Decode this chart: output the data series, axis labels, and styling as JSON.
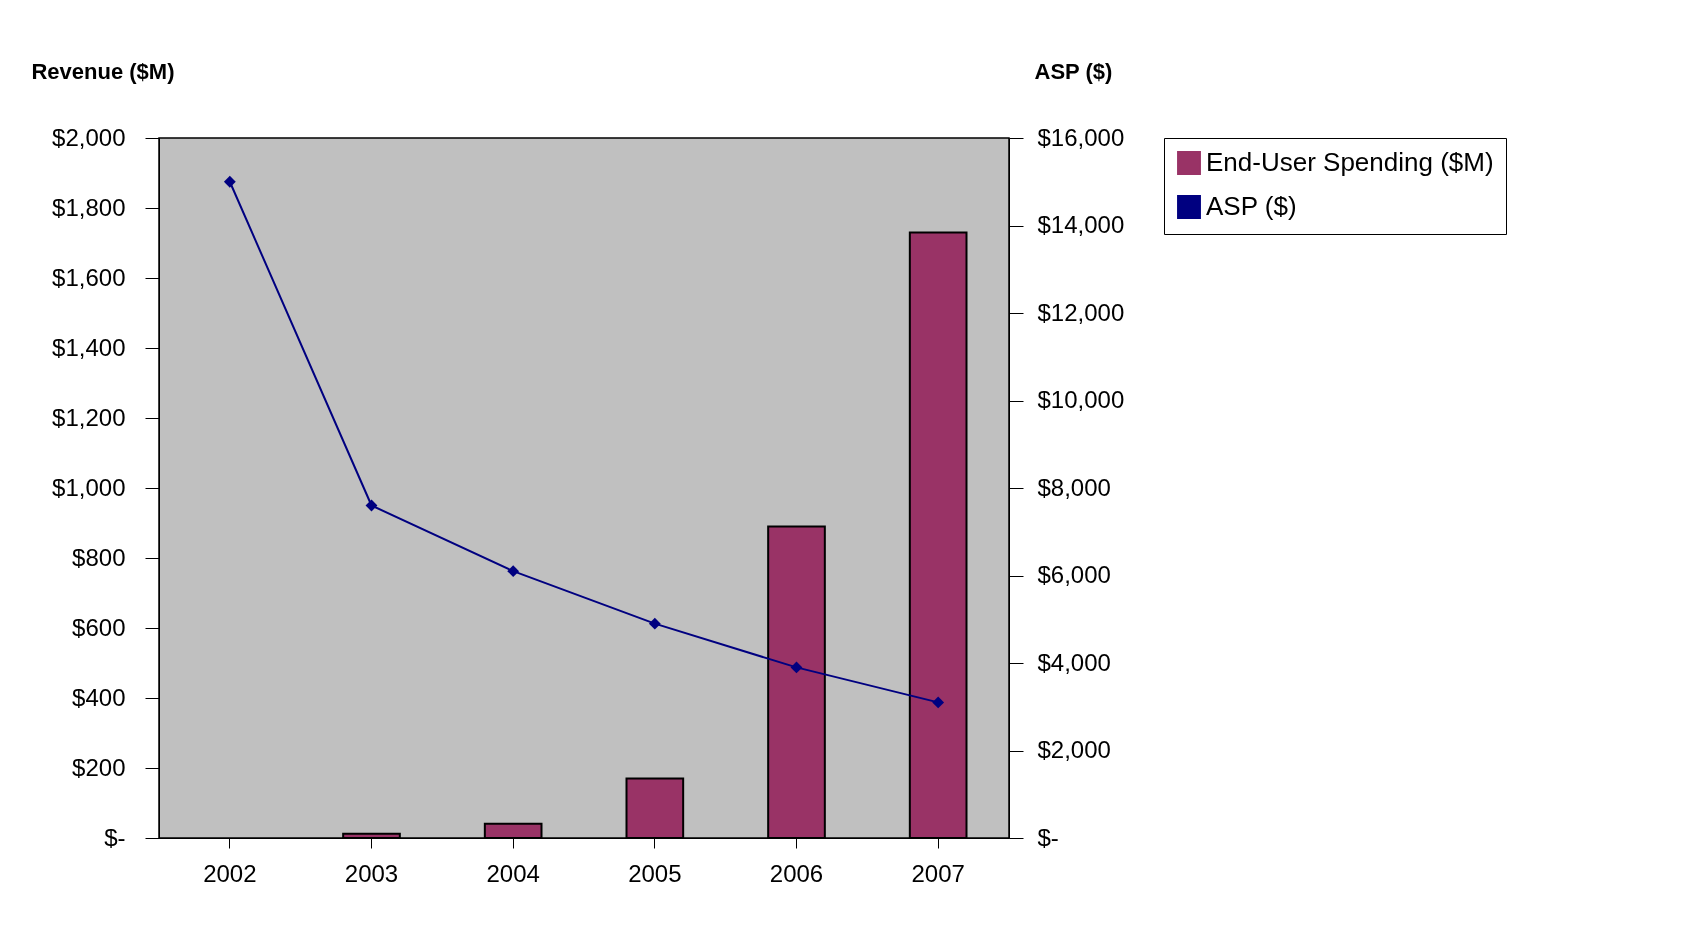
{
  "chart_data": {
    "type": "bar",
    "ylabel": "Revenue ($M)",
    "y2label": "ASP ($)",
    "categories": [
      "2002",
      "2003",
      "2004",
      "2005",
      "2006",
      "2007"
    ],
    "series": [
      {
        "name": "End-User Spending ($M)",
        "color": "#993366",
        "values": [
          null,
          12,
          41,
          170,
          890,
          1730
        ]
      },
      {
        "name": "ASP ($)",
        "type": "line",
        "axis": "y2",
        "color": "#000080",
        "marker": "diamond",
        "values": [
          15000,
          7600,
          6100,
          4900,
          3900,
          3100
        ]
      }
    ],
    "ylim": [
      0,
      2000
    ],
    "yticks": [
      {
        "value": 0,
        "label": "$-"
      },
      {
        "value": 200,
        "label": "$200"
      },
      {
        "value": 400,
        "label": "$400"
      },
      {
        "value": 600,
        "label": "$600"
      },
      {
        "value": 800,
        "label": "$800"
      },
      {
        "value": 1000,
        "label": "$1,000"
      },
      {
        "value": 1200,
        "label": "$1,200"
      },
      {
        "value": 1400,
        "label": "$1,400"
      },
      {
        "value": 1600,
        "label": "$1,600"
      },
      {
        "value": 1800,
        "label": "$1,800"
      },
      {
        "value": 2000,
        "label": "$2,000"
      }
    ],
    "y2lim": [
      0,
      16000
    ],
    "y2ticks": [
      {
        "value": 0,
        "label": "$-"
      },
      {
        "value": 2000,
        "label": "$2,000"
      },
      {
        "value": 4000,
        "label": "$4,000"
      },
      {
        "value": 6000,
        "label": "$6,000"
      },
      {
        "value": 8000,
        "label": "$8,000"
      },
      {
        "value": 10000,
        "label": "$10,000"
      },
      {
        "value": 12000,
        "label": "$12,000"
      },
      {
        "value": 14000,
        "label": "$14,000"
      },
      {
        "value": 16000,
        "label": "$16,000"
      }
    ],
    "grid": false,
    "legend": "right"
  }
}
